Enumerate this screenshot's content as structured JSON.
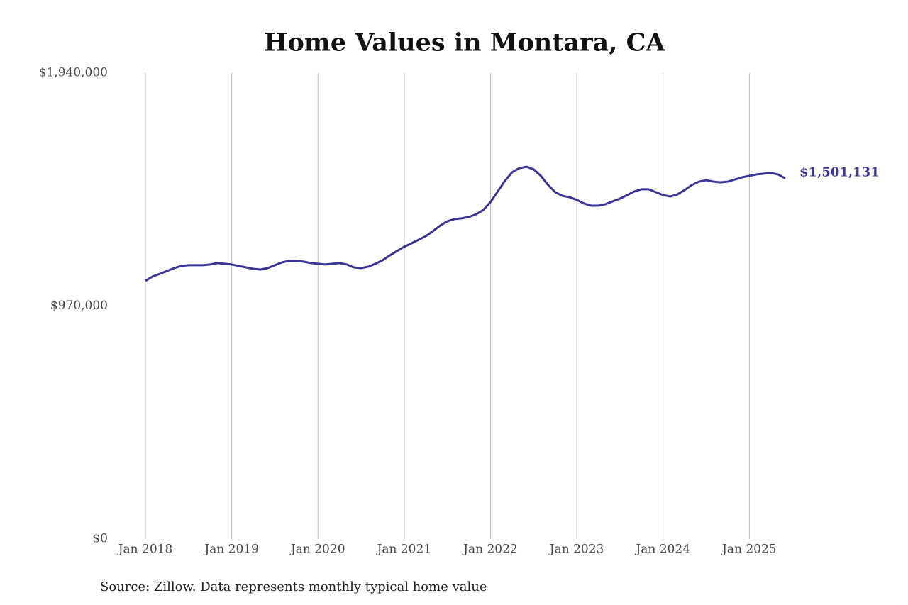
{
  "chart_data": {
    "type": "line",
    "title": "Home Values in Montara, CA",
    "source": "Source: Zillow. Data represents monthly typical home value",
    "x": [
      "2018-01",
      "2018-02",
      "2018-03",
      "2018-04",
      "2018-05",
      "2018-06",
      "2018-07",
      "2018-08",
      "2018-09",
      "2018-10",
      "2018-11",
      "2018-12",
      "2019-01",
      "2019-02",
      "2019-03",
      "2019-04",
      "2019-05",
      "2019-06",
      "2019-07",
      "2019-08",
      "2019-09",
      "2019-10",
      "2019-11",
      "2019-12",
      "2020-01",
      "2020-02",
      "2020-03",
      "2020-04",
      "2020-05",
      "2020-06",
      "2020-07",
      "2020-08",
      "2020-09",
      "2020-10",
      "2020-11",
      "2020-12",
      "2021-01",
      "2021-02",
      "2021-03",
      "2021-04",
      "2021-05",
      "2021-06",
      "2021-07",
      "2021-08",
      "2021-09",
      "2021-10",
      "2021-11",
      "2021-12",
      "2022-01",
      "2022-02",
      "2022-03",
      "2022-04",
      "2022-05",
      "2022-06",
      "2022-07",
      "2022-08",
      "2022-09",
      "2022-10",
      "2022-11",
      "2022-12",
      "2023-01",
      "2023-02",
      "2023-03",
      "2023-04",
      "2023-05",
      "2023-06",
      "2023-07",
      "2023-08",
      "2023-09",
      "2023-10",
      "2023-11",
      "2023-12",
      "2024-01",
      "2024-02",
      "2024-03",
      "2024-04",
      "2024-05",
      "2024-06",
      "2024-07",
      "2024-08",
      "2024-09",
      "2024-10",
      "2024-11",
      "2024-12",
      "2025-01",
      "2025-02",
      "2025-03",
      "2025-04",
      "2025-05",
      "2025-06"
    ],
    "series": [
      {
        "name": "Typical home value",
        "color": "#3a3596",
        "values": [
          1075000,
          1093000,
          1104000,
          1116000,
          1128000,
          1137000,
          1140000,
          1140000,
          1140000,
          1143000,
          1149000,
          1146000,
          1143000,
          1137000,
          1131000,
          1125000,
          1122000,
          1128000,
          1140000,
          1152000,
          1158000,
          1158000,
          1155000,
          1149000,
          1146000,
          1143000,
          1146000,
          1149000,
          1143000,
          1131000,
          1128000,
          1134000,
          1146000,
          1161000,
          1181000,
          1199000,
          1217000,
          1231000,
          1246000,
          1261000,
          1282000,
          1305000,
          1323000,
          1332000,
          1335000,
          1341000,
          1352000,
          1370000,
          1403000,
          1447000,
          1491000,
          1527000,
          1544000,
          1550000,
          1539000,
          1512000,
          1474000,
          1444000,
          1429000,
          1423000,
          1412000,
          1397000,
          1388000,
          1388000,
          1394000,
          1406000,
          1417000,
          1432000,
          1447000,
          1456000,
          1456000,
          1444000,
          1432000,
          1426000,
          1435000,
          1453000,
          1474000,
          1488000,
          1494000,
          1488000,
          1485000,
          1488000,
          1497000,
          1506000,
          1512000,
          1518000,
          1521000,
          1524000,
          1518000,
          1501131
        ],
        "value_labels": [
          null,
          null,
          null,
          null,
          null,
          null,
          null,
          null,
          null,
          null,
          null,
          null,
          null,
          null,
          null,
          null,
          null,
          null,
          null,
          null,
          null,
          null,
          null,
          null,
          null,
          null,
          null,
          null,
          null,
          null,
          null,
          null,
          null,
          null,
          null,
          null,
          null,
          null,
          null,
          null,
          null,
          null,
          null,
          null,
          null,
          null,
          null,
          null,
          null,
          null,
          null,
          null,
          null,
          null,
          null,
          null,
          null,
          null,
          null,
          null,
          null,
          null,
          null,
          null,
          null,
          null,
          null,
          null,
          null,
          null,
          null,
          null,
          null,
          null,
          null,
          null,
          null,
          null,
          null,
          null,
          null,
          null,
          null,
          null,
          null,
          null,
          null,
          null,
          null,
          "$1,501,131"
        ]
      }
    ],
    "ylim": [
      0,
      1940000
    ],
    "yticks": [
      {
        "value": 0,
        "label": "$0"
      },
      {
        "value": 970000,
        "label": "$970,000"
      },
      {
        "value": 1940000,
        "label": "$1,940,000"
      }
    ],
    "xticks": [
      {
        "value": "2018-01",
        "label": "Jan 2018"
      },
      {
        "value": "2019-01",
        "label": "Jan 2019"
      },
      {
        "value": "2020-01",
        "label": "Jan 2020"
      },
      {
        "value": "2021-01",
        "label": "Jan 2021"
      },
      {
        "value": "2022-01",
        "label": "Jan 2022"
      },
      {
        "value": "2023-01",
        "label": "Jan 2023"
      },
      {
        "value": "2024-01",
        "label": "Jan 2024"
      },
      {
        "value": "2025-01",
        "label": "Jan 2025"
      }
    ],
    "grid": "x"
  }
}
